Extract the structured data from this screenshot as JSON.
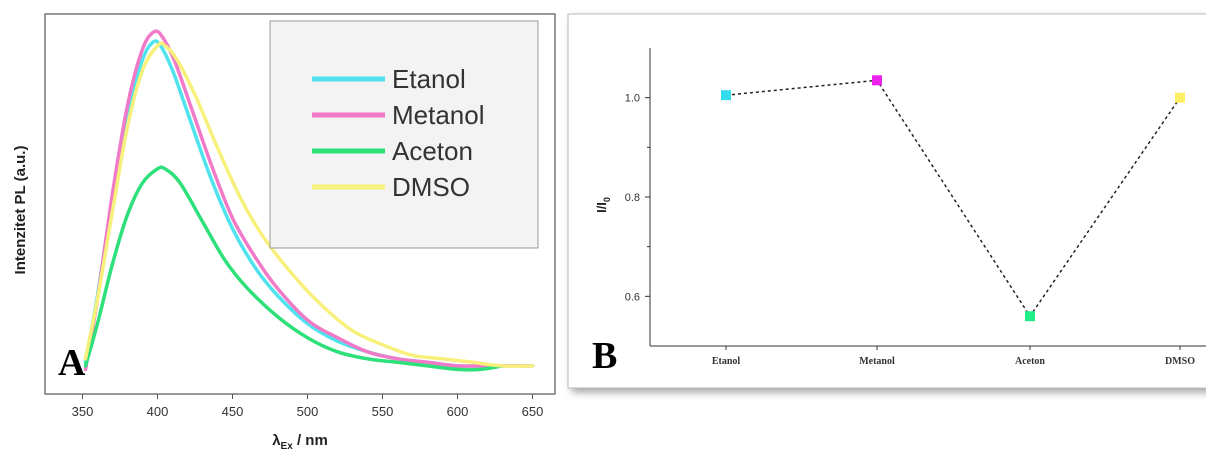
{
  "chart_data": [
    {
      "panel": "A",
      "type": "line",
      "ylabel": "Intenzitet PL (a.u.)",
      "xlabel_main": "λ",
      "xlabel_sub": "Ex",
      "xlabel_rest": " / nm",
      "xlim": [
        325,
        665
      ],
      "xticks": [
        350,
        400,
        450,
        500,
        550,
        600,
        650
      ],
      "ylim": [
        0,
        1.08
      ],
      "yticks_labeled": false,
      "legend_position": "top-right",
      "series": [
        {
          "name": "Etanol",
          "color": "#4fe3ee",
          "points": [
            [
              352,
              0.09
            ],
            [
              360,
              0.28
            ],
            [
              370,
              0.56
            ],
            [
              380,
              0.8
            ],
            [
              390,
              0.95
            ],
            [
              397,
              1.0
            ],
            [
              402,
              0.99
            ],
            [
              410,
              0.92
            ],
            [
              420,
              0.8
            ],
            [
              435,
              0.62
            ],
            [
              450,
              0.47
            ],
            [
              465,
              0.36
            ],
            [
              480,
              0.28
            ],
            [
              500,
              0.2
            ],
            [
              520,
              0.15
            ],
            [
              540,
              0.12
            ],
            [
              560,
              0.1
            ],
            [
              580,
              0.09
            ],
            [
              600,
              0.08
            ],
            [
              620,
              0.08
            ],
            [
              650,
              0.08
            ]
          ]
        },
        {
          "name": "Metanol",
          "color": "#f07ac8",
          "points": [
            [
              352,
              0.07
            ],
            [
              360,
              0.27
            ],
            [
              370,
              0.57
            ],
            [
              380,
              0.82
            ],
            [
              390,
              0.98
            ],
            [
              398,
              1.03
            ],
            [
              404,
              1.01
            ],
            [
              412,
              0.94
            ],
            [
              422,
              0.82
            ],
            [
              436,
              0.65
            ],
            [
              450,
              0.5
            ],
            [
              465,
              0.39
            ],
            [
              480,
              0.3
            ],
            [
              500,
              0.21
            ],
            [
              520,
              0.16
            ],
            [
              540,
              0.12
            ],
            [
              560,
              0.1
            ],
            [
              580,
              0.09
            ],
            [
              600,
              0.08
            ],
            [
              620,
              0.08
            ],
            [
              650,
              0.08
            ]
          ]
        },
        {
          "name": "Aceton",
          "color": "#2ee07a",
          "points": [
            [
              352,
              0.08
            ],
            [
              360,
              0.2
            ],
            [
              370,
              0.37
            ],
            [
              380,
              0.51
            ],
            [
              390,
              0.6
            ],
            [
              400,
              0.64
            ],
            [
              405,
              0.64
            ],
            [
              415,
              0.6
            ],
            [
              430,
              0.49
            ],
            [
              445,
              0.38
            ],
            [
              460,
              0.3
            ],
            [
              480,
              0.22
            ],
            [
              500,
              0.16
            ],
            [
              520,
              0.12
            ],
            [
              540,
              0.1
            ],
            [
              560,
              0.09
            ],
            [
              580,
              0.08
            ],
            [
              600,
              0.07
            ],
            [
              615,
              0.07
            ],
            [
              630,
              0.08
            ]
          ]
        },
        {
          "name": "DMSO",
          "color": "#f7f07a",
          "points": [
            [
              352,
              0.1
            ],
            [
              360,
              0.27
            ],
            [
              370,
              0.52
            ],
            [
              380,
              0.76
            ],
            [
              390,
              0.92
            ],
            [
              400,
              0.99
            ],
            [
              405,
              0.99
            ],
            [
              413,
              0.95
            ],
            [
              425,
              0.85
            ],
            [
              440,
              0.7
            ],
            [
              455,
              0.56
            ],
            [
              470,
              0.45
            ],
            [
              490,
              0.34
            ],
            [
              510,
              0.25
            ],
            [
              530,
              0.18
            ],
            [
              550,
              0.14
            ],
            [
              570,
              0.11
            ],
            [
              590,
              0.1
            ],
            [
              610,
              0.09
            ],
            [
              630,
              0.08
            ],
            [
              650,
              0.08
            ]
          ]
        }
      ]
    },
    {
      "panel": "B",
      "type": "scatter",
      "ylabel": "I/I",
      "ylabel_sub": "0",
      "categories": [
        "Etanol",
        "Metanol",
        "Aceton",
        "DMSO"
      ],
      "values": [
        1.005,
        1.035,
        0.56,
        1.0
      ],
      "colors": [
        "#33ddee",
        "#ee22ee",
        "#22ee88",
        "#ffee66"
      ],
      "ylim": [
        0.5,
        1.1
      ],
      "yticks": [
        0.6,
        0.8,
        1.0
      ],
      "ytick_labels": [
        "0.6",
        "0.8",
        "1.0"
      ],
      "connector": "dashed"
    }
  ]
}
